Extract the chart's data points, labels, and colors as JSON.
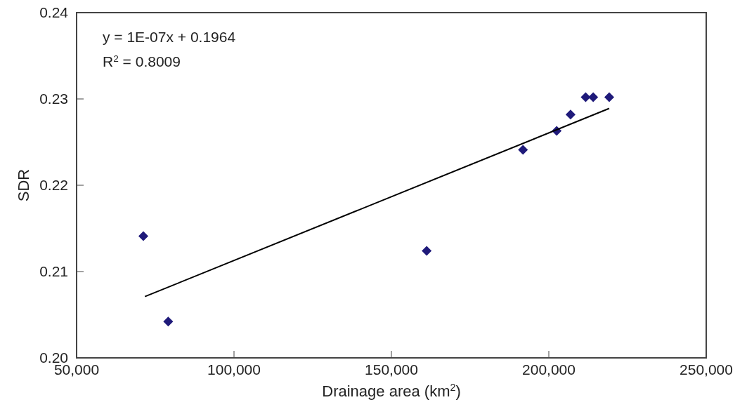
{
  "chart_data": {
    "type": "scatter",
    "xlabel": "Drainage area (km$^{2}$)",
    "ylabel": "SDR",
    "annotations": [
      "y = 1E-07x + 0.1964",
      "R$^{2}$ = 0.8009"
    ],
    "series": [
      {
        "color": "#1f1a7a",
        "marker": "diamond",
        "x": [
          71200,
          79100,
          161200,
          191800,
          202500,
          206900,
          211700,
          214100,
          219200
        ],
        "values": [
          0.2141,
          0.2042,
          0.2124,
          0.2241,
          0.2263,
          0.2282,
          0.2302,
          0.2302,
          0.2302
        ]
      },
      {
        "type": "line",
        "color": "#000000",
        "marker": "none",
        "x": [
          71700,
          219200
        ],
        "values": [
          0.2071,
          0.2289
        ]
      }
    ],
    "xlim": [
      50000,
      250000
    ],
    "xticks": [
      {
        "value": 50000,
        "label": "50,000"
      },
      {
        "value": 100000,
        "label": "100,000"
      },
      {
        "value": 150000,
        "label": "150,000"
      },
      {
        "value": 200000,
        "label": "200,000"
      },
      {
        "value": 250000,
        "label": "250,000"
      }
    ],
    "ylim": [
      0.2,
      0.24
    ],
    "yticks": [
      {
        "value": 0.2,
        "label": "0.20"
      },
      {
        "value": 0.21,
        "label": "0.21"
      },
      {
        "value": 0.22,
        "label": "0.22"
      },
      {
        "value": 0.23,
        "label": "0.23"
      },
      {
        "value": 0.24,
        "label": "0.24"
      }
    ],
    "grid": false
  }
}
